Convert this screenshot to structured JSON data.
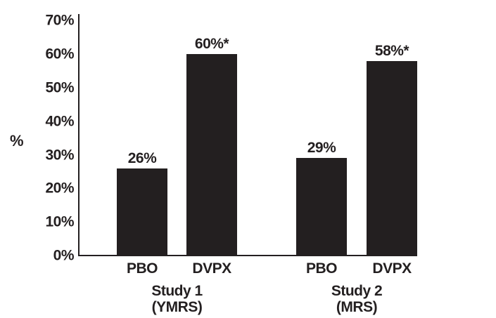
{
  "chart_data": {
    "type": "bar",
    "title": "",
    "xlabel": "",
    "ylabel": "%",
    "ylim": [
      0,
      70
    ],
    "ytick_step": 10,
    "ytick_labels": [
      "0%",
      "10%",
      "20%",
      "30%",
      "40%",
      "50%",
      "60%",
      "70%"
    ],
    "grid": "off",
    "legend": "none",
    "bar_color": "#231f20",
    "text_color": "#231f20",
    "groups": [
      {
        "label": "Study 1",
        "sublabel": "(YMRS)",
        "bars": [
          {
            "category": "PBO",
            "value": 26,
            "data_label": "26%"
          },
          {
            "category": "DVPX",
            "value": 60,
            "data_label": "60%*"
          }
        ]
      },
      {
        "label": "Study 2",
        "sublabel": "(MRS)",
        "bars": [
          {
            "category": "PBO",
            "value": 29,
            "data_label": "29%"
          },
          {
            "category": "DVPX",
            "value": 58,
            "data_label": "58%*"
          }
        ]
      }
    ]
  }
}
